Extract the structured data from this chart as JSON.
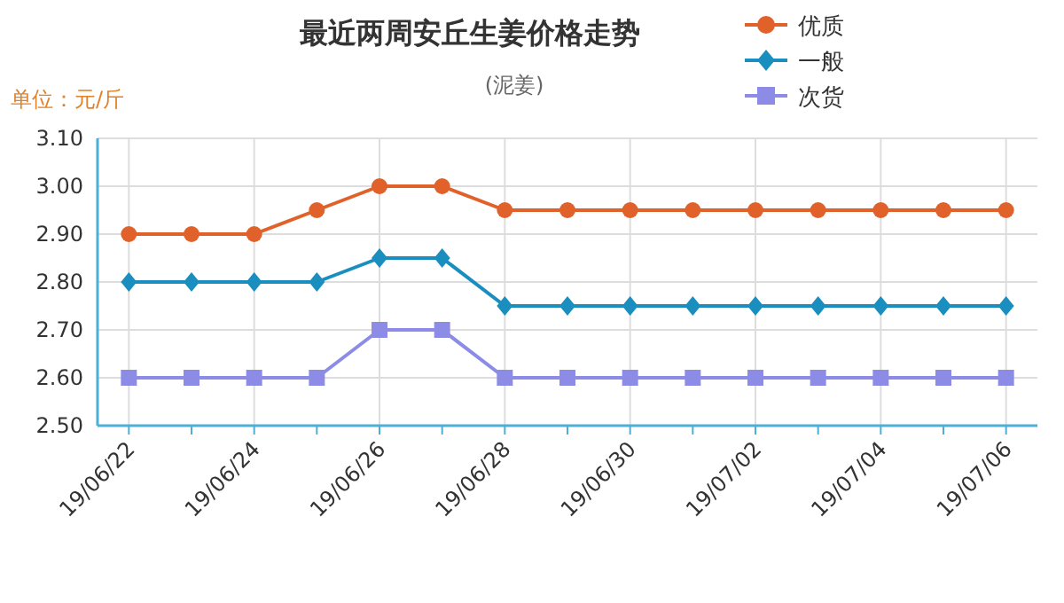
{
  "chart_data": {
    "type": "line",
    "title": "最近两周安丘生姜价格走势",
    "subtitle": "(泥姜)",
    "ylabel": "单位：元/斤",
    "categories": [
      "19/06/22",
      null,
      "19/06/24",
      null,
      "19/06/26",
      null,
      "19/06/28",
      null,
      "19/06/30",
      null,
      "19/07/02",
      null,
      "19/07/04",
      null,
      "19/07/06"
    ],
    "series": [
      {
        "name": "优质",
        "color": "#e0622a",
        "marker": "circle",
        "values": [
          2.9,
          2.9,
          2.9,
          2.95,
          3.0,
          3.0,
          2.95,
          2.95,
          2.95,
          2.95,
          2.95,
          2.95,
          2.95,
          2.95,
          2.95
        ]
      },
      {
        "name": "一般",
        "color": "#1a8fbf",
        "marker": "diamond",
        "values": [
          2.8,
          2.8,
          2.8,
          2.8,
          2.85,
          2.85,
          2.75,
          2.75,
          2.75,
          2.75,
          2.75,
          2.75,
          2.75,
          2.75,
          2.75
        ]
      },
      {
        "name": "次货",
        "color": "#8c8ce6",
        "marker": "square",
        "values": [
          2.6,
          2.6,
          2.6,
          2.6,
          2.7,
          2.7,
          2.6,
          2.6,
          2.6,
          2.6,
          2.6,
          2.6,
          2.6,
          2.6,
          2.6
        ]
      }
    ],
    "ylim": [
      2.5,
      3.1
    ],
    "yticks": [
      {
        "value": 2.5,
        "label": "2.50"
      },
      {
        "value": 2.6,
        "label": "2.60"
      },
      {
        "value": 2.7,
        "label": "2.70"
      },
      {
        "value": 2.8,
        "label": "2.80"
      },
      {
        "value": 2.9,
        "label": "2.90"
      },
      {
        "value": 3.0,
        "label": "3.00"
      },
      {
        "value": 3.1,
        "label": "3.10"
      }
    ],
    "grid": true,
    "legend": "top right"
  }
}
